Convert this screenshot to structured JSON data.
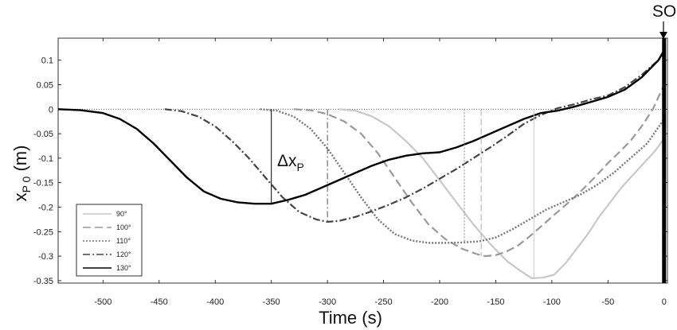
{
  "chart_data": {
    "type": "line",
    "xlabel": "Time (s)",
    "ylabel_main": "x",
    "ylabel_sub": "P 0",
    "ylabel_unit": " (m)",
    "xlim": [
      -540,
      3
    ],
    "ylim": [
      -0.355,
      0.145
    ],
    "x_ticks": [
      -500,
      -450,
      -400,
      -350,
      -300,
      -250,
      -200,
      -150,
      -100,
      -50,
      0
    ],
    "y_ticks": [
      0.1,
      0.05,
      0,
      -0.05,
      -0.1,
      -0.15,
      -0.2,
      -0.25,
      -0.3,
      -0.35
    ],
    "x_tick_labels": [
      "-500",
      "-450",
      "-400",
      "-350",
      "-300",
      "-250",
      "-200",
      "-150",
      "-100",
      "-50",
      "0"
    ],
    "y_tick_labels": [
      "0.1",
      "0.05",
      "0",
      "-0.05",
      "-0.1",
      "-0.15",
      "-0.2",
      "-0.25",
      "-0.3",
      "-0.35"
    ],
    "grid": false,
    "legend_position": "bottom-left",
    "zero_line": "dotted",
    "annotations": {
      "so_label": "SO",
      "delta_main": "Δx",
      "delta_sub": "P"
    },
    "series": [
      {
        "name": "90°",
        "color": "#c8c8c8",
        "dash": "solid",
        "width": 2.2,
        "x": [
          -290,
          -275,
          -260,
          -245,
          -230,
          -215,
          -200,
          -185,
          -170,
          -155,
          -140,
          -128,
          -118,
          -108,
          -98,
          -88,
          -78,
          -68,
          -58,
          -48,
          -38,
          -28,
          -18,
          -8,
          0
        ],
        "y": [
          0,
          -0.003,
          -0.015,
          -0.035,
          -0.065,
          -0.1,
          -0.145,
          -0.19,
          -0.235,
          -0.275,
          -0.31,
          -0.33,
          -0.345,
          -0.344,
          -0.338,
          -0.315,
          -0.285,
          -0.255,
          -0.22,
          -0.19,
          -0.16,
          -0.135,
          -0.11,
          -0.085,
          -0.06
        ]
      },
      {
        "name": "100°",
        "color": "#9a9a9a",
        "dash": "10,5",
        "width": 2.2,
        "x": [
          -330,
          -315,
          -300,
          -285,
          -270,
          -255,
          -240,
          -225,
          -210,
          -195,
          -180,
          -168,
          -160,
          -150,
          -140,
          -130,
          -120,
          -110,
          -100,
          -90,
          -80,
          -70,
          -60,
          -50,
          -40,
          -30,
          -20,
          -10,
          0
        ],
        "y": [
          0,
          -0.002,
          -0.01,
          -0.025,
          -0.05,
          -0.09,
          -0.14,
          -0.19,
          -0.235,
          -0.265,
          -0.285,
          -0.295,
          -0.3,
          -0.298,
          -0.29,
          -0.278,
          -0.26,
          -0.24,
          -0.22,
          -0.2,
          -0.18,
          -0.158,
          -0.135,
          -0.11,
          -0.088,
          -0.065,
          -0.035,
          0,
          0.05
        ]
      },
      {
        "name": "110°",
        "color": "#777777",
        "dash": "2,2",
        "width": 2.4,
        "x": [
          -360,
          -345,
          -330,
          -315,
          -300,
          -285,
          -270,
          -255,
          -240,
          -225,
          -210,
          -195,
          -180,
          -165,
          -150,
          -135,
          -120,
          -105,
          -90,
          -75,
          -60,
          -45,
          -30,
          -15,
          0
        ],
        "y": [
          0,
          -0.003,
          -0.015,
          -0.04,
          -0.08,
          -0.13,
          -0.18,
          -0.225,
          -0.255,
          -0.268,
          -0.273,
          -0.273,
          -0.272,
          -0.27,
          -0.262,
          -0.245,
          -0.225,
          -0.205,
          -0.19,
          -0.175,
          -0.155,
          -0.13,
          -0.1,
          -0.07,
          -0.02
        ]
      },
      {
        "name": "120°",
        "color": "#444444",
        "dash": "9,3,2,3",
        "width": 2.2,
        "x": [
          -445,
          -430,
          -415,
          -400,
          -385,
          -370,
          -355,
          -340,
          -325,
          -310,
          -300,
          -290,
          -275,
          -260,
          -245,
          -230,
          -215,
          -200,
          -185,
          -170,
          -155,
          -140,
          -125,
          -110,
          -95,
          -80,
          -65,
          -50,
          -35,
          -20,
          -5,
          0
        ],
        "y": [
          0,
          -0.004,
          -0.015,
          -0.035,
          -0.065,
          -0.1,
          -0.14,
          -0.18,
          -0.21,
          -0.225,
          -0.23,
          -0.228,
          -0.22,
          -0.208,
          -0.195,
          -0.18,
          -0.162,
          -0.142,
          -0.122,
          -0.1,
          -0.078,
          -0.055,
          -0.03,
          -0.012,
          0.002,
          0.01,
          0.02,
          0.028,
          0.045,
          0.07,
          0.1,
          0.115
        ]
      },
      {
        "name": "130°",
        "color": "#000000",
        "dash": "solid",
        "width": 2.4,
        "x": [
          -540,
          -520,
          -500,
          -485,
          -470,
          -455,
          -440,
          -425,
          -410,
          -395,
          -380,
          -365,
          -350,
          -335,
          -320,
          -305,
          -290,
          -275,
          -260,
          -245,
          -230,
          -215,
          -200,
          -185,
          -170,
          -155,
          -140,
          -125,
          -110,
          -95,
          -80,
          -65,
          -50,
          -35,
          -20,
          -5,
          0
        ],
        "y": [
          0,
          -0.002,
          -0.008,
          -0.02,
          -0.04,
          -0.07,
          -0.105,
          -0.14,
          -0.168,
          -0.183,
          -0.19,
          -0.193,
          -0.193,
          -0.185,
          -0.175,
          -0.16,
          -0.145,
          -0.13,
          -0.115,
          -0.103,
          -0.095,
          -0.09,
          -0.088,
          -0.078,
          -0.065,
          -0.05,
          -0.035,
          -0.02,
          -0.008,
          -0.003,
          0.005,
          0.015,
          0.025,
          0.04,
          0.065,
          0.1,
          0.12
        ]
      }
    ],
    "markers": [
      {
        "x": -350,
        "y_from": 0,
        "y_to": -0.193,
        "color": "#000000",
        "dash": "solid",
        "width": 1
      },
      {
        "x": -300,
        "y_from": 0,
        "y_to": -0.23,
        "color": "#555555",
        "dash": "8,3,2,3",
        "width": 1
      },
      {
        "x": -178,
        "y_from": 0,
        "y_to": -0.273,
        "color": "#888888",
        "dash": "2,2",
        "width": 1
      },
      {
        "x": -163,
        "y_from": 0,
        "y_to": -0.3,
        "color": "#aaaaaa",
        "dash": "8,4",
        "width": 1
      },
      {
        "x": -116,
        "y_from": 0,
        "y_to": -0.345,
        "color": "#c8c8c8",
        "dash": "solid",
        "width": 1
      }
    ]
  }
}
